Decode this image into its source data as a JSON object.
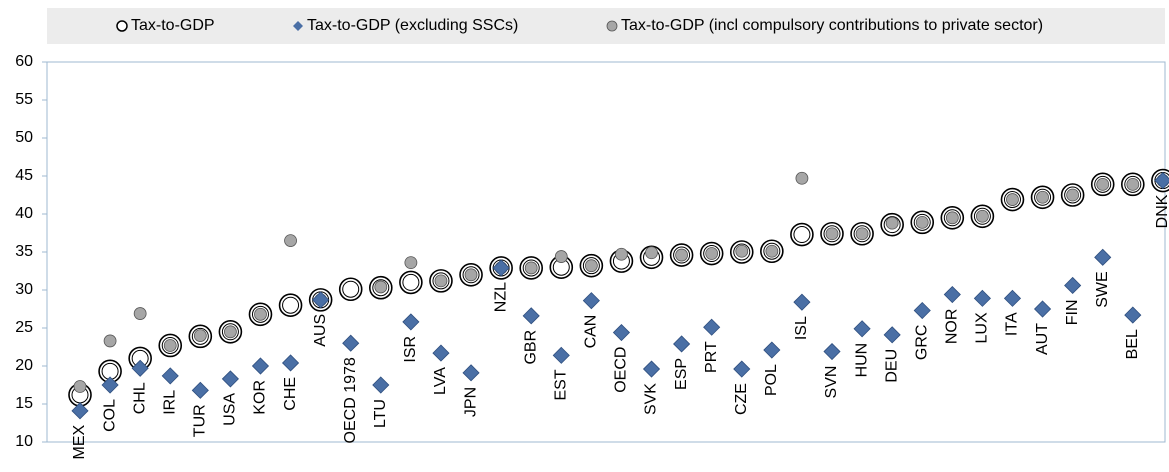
{
  "chart_data": {
    "type": "dot",
    "categories": [
      "MEX",
      "COL",
      "CHL",
      "IRL",
      "TUR",
      "USA",
      "KOR",
      "CHE",
      "AUS",
      "OECD 1978",
      "LTU",
      "ISR",
      "LVA",
      "JPN",
      "NZL",
      "GBR",
      "EST",
      "CAN",
      "OECD",
      "SVK",
      "ESP",
      "PRT",
      "CZE",
      "POL",
      "ISL",
      "SVN",
      "HUN",
      "DEU",
      "GRC",
      "NOR",
      "LUX",
      "ITA",
      "AUT",
      "FIN",
      "SWE",
      "BEL",
      "DNK"
    ],
    "series": [
      {
        "name": "Tax-to-GDP",
        "marker": "open-circle",
        "color": "#000000",
        "values": [
          16.2,
          19.3,
          21.0,
          22.7,
          23.9,
          24.5,
          26.8,
          28.0,
          28.7,
          30.1,
          30.3,
          31.0,
          31.2,
          32.0,
          32.9,
          32.9,
          33.0,
          33.2,
          33.8,
          34.3,
          34.6,
          34.8,
          35.0,
          35.1,
          37.3,
          37.4,
          37.4,
          38.6,
          38.9,
          39.5,
          39.7,
          41.9,
          42.2,
          42.5,
          43.9,
          43.9,
          44.4
        ]
      },
      {
        "name": "Tax-to-GDP (excluding SSCs)",
        "marker": "diamond",
        "color": "#4a6fa5",
        "values": [
          14.1,
          17.5,
          19.7,
          18.7,
          16.8,
          18.3,
          20.0,
          20.4,
          28.7,
          23.0,
          17.5,
          25.8,
          21.7,
          19.1,
          32.9,
          26.6,
          21.4,
          28.6,
          24.4,
          19.6,
          22.9,
          25.1,
          19.6,
          22.1,
          28.4,
          21.9,
          24.9,
          24.1,
          27.3,
          29.4,
          28.9,
          28.9,
          27.5,
          30.6,
          34.3,
          26.7,
          44.4
        ]
      },
      {
        "name": "Tax-to-GDP (incl compulsory contributions to private sector)",
        "marker": "dot",
        "color": "#a6a6a6",
        "values": [
          17.3,
          23.3,
          26.9,
          22.7,
          24.0,
          24.5,
          26.8,
          36.5,
          28.7,
          null,
          30.4,
          33.6,
          31.2,
          32.0,
          32.9,
          32.9,
          34.4,
          33.2,
          34.7,
          34.9,
          34.6,
          34.8,
          35.1,
          35.1,
          44.7,
          37.4,
          37.4,
          38.8,
          38.9,
          39.5,
          39.7,
          41.9,
          42.2,
          42.5,
          43.9,
          43.9,
          44.4
        ]
      }
    ],
    "ylim": [
      10,
      60
    ],
    "yticks": [
      10,
      15,
      20,
      25,
      30,
      35,
      40,
      45,
      50,
      55,
      60
    ],
    "grid": false
  }
}
